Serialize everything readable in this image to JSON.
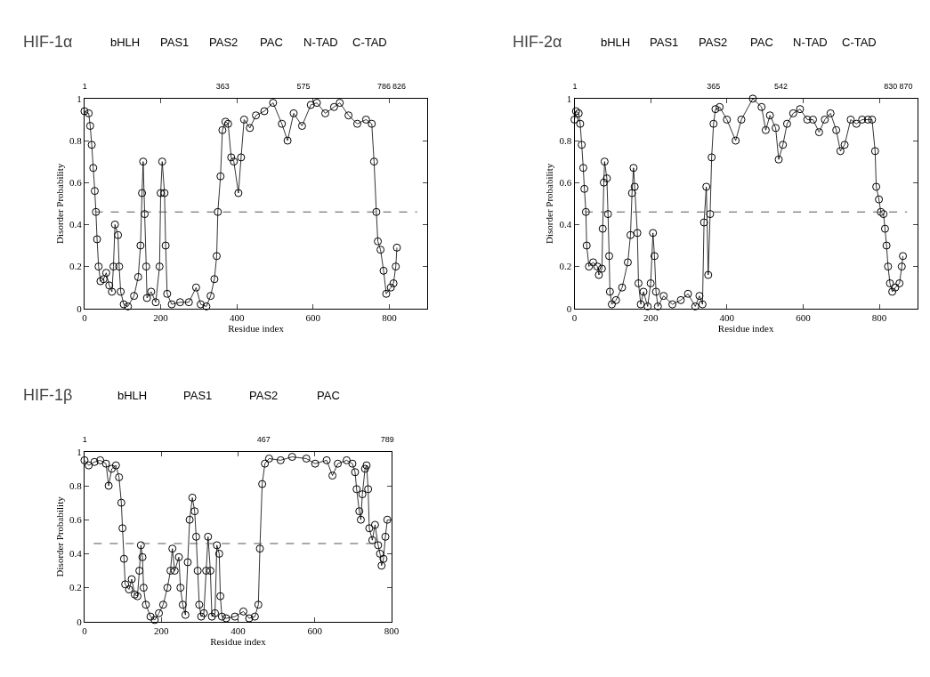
{
  "chart_data": [
    {
      "type": "line",
      "title": "HIF-1α",
      "xlabel": "Residue index",
      "ylabel": "Disorder Probability",
      "marker": "circle",
      "line_style": "solid",
      "xlim": [
        0,
        900
      ],
      "ylim": [
        0,
        1
      ],
      "xticks": [
        0,
        200,
        400,
        600,
        800
      ],
      "yticks": [
        0,
        0.2,
        0.4,
        0.6,
        0.8,
        1
      ],
      "x2lim": [
        0,
        900
      ],
      "x2ticks": [
        1,
        363,
        575,
        786,
        826
      ],
      "annotations": [
        "bHLH",
        "PAS1",
        "PAS2",
        "PAC",
        "N-TAD",
        "C-TAD"
      ],
      "ref_lines": [
        {
          "axis": "y",
          "value": 0.46,
          "line_style": "dashed",
          "color": "#555555"
        }
      ],
      "x": [
        0,
        11,
        15,
        19,
        23,
        27,
        30,
        33,
        37,
        42,
        50,
        57,
        65,
        72,
        76,
        80,
        88,
        91,
        95,
        103,
        114,
        130,
        141,
        147,
        151,
        154,
        158,
        162,
        164,
        175,
        187,
        197,
        200,
        204,
        210,
        213,
        217,
        229,
        251,
        274,
        293,
        305,
        320,
        331,
        341,
        347,
        350,
        357,
        362,
        370,
        377,
        385,
        392,
        404,
        411,
        419,
        434,
        450,
        472,
        495,
        518,
        533,
        549,
        571,
        594,
        610,
        632,
        655,
        670,
        693,
        716,
        739,
        754,
        760,
        766,
        770,
        777,
        785,
        792,
        804,
        811,
        817,
        820
      ],
      "series": [
        {
          "color": "#000000",
          "values": [
            0.94,
            0.93,
            0.87,
            0.78,
            0.67,
            0.56,
            0.46,
            0.33,
            0.2,
            0.13,
            0.14,
            0.17,
            0.11,
            0.08,
            0.2,
            0.4,
            0.35,
            0.2,
            0.08,
            0.02,
            0.01,
            0.06,
            0.15,
            0.3,
            0.55,
            0.7,
            0.45,
            0.2,
            0.05,
            0.08,
            0.03,
            0.2,
            0.55,
            0.7,
            0.55,
            0.3,
            0.07,
            0.02,
            0.03,
            0.03,
            0.1,
            0.02,
            0.01,
            0.06,
            0.14,
            0.25,
            0.46,
            0.63,
            0.85,
            0.89,
            0.88,
            0.72,
            0.7,
            0.55,
            0.72,
            0.9,
            0.86,
            0.92,
            0.94,
            0.98,
            0.88,
            0.8,
            0.93,
            0.87,
            0.97,
            0.98,
            0.93,
            0.96,
            0.98,
            0.92,
            0.88,
            0.9,
            0.88,
            0.7,
            0.46,
            0.32,
            0.28,
            0.18,
            0.07,
            0.1,
            0.12,
            0.2,
            0.29
          ]
        }
      ]
    },
    {
      "type": "line",
      "title": "HIF-2α",
      "xlabel": "Residue index",
      "ylabel": "Disorder Probability",
      "marker": "circle",
      "line_style": "solid",
      "xlim": [
        0,
        900
      ],
      "ylim": [
        0,
        1
      ],
      "xticks": [
        0,
        200,
        400,
        600,
        800
      ],
      "yticks": [
        0,
        0.2,
        0.4,
        0.6,
        0.8,
        1
      ],
      "x2lim": [
        0,
        900
      ],
      "x2ticks": [
        1,
        365,
        542,
        830,
        870
      ],
      "annotations": [
        "bHLH",
        "PAS1",
        "PAS2",
        "PAC",
        "N-TAD",
        "C-TAD"
      ],
      "ref_lines": [
        {
          "axis": "y",
          "value": 0.46,
          "line_style": "dashed",
          "color": "#555555"
        }
      ],
      "x": [
        0,
        4,
        11,
        15,
        19,
        23,
        26,
        30,
        32,
        38,
        49,
        60,
        64,
        72,
        74,
        77,
        79,
        85,
        88,
        91,
        93,
        98,
        109,
        125,
        140,
        147,
        151,
        155,
        158,
        165,
        168,
        174,
        181,
        192,
        200,
        206,
        210,
        214,
        219,
        234,
        257,
        279,
        298,
        317,
        328,
        336,
        340,
        346,
        351,
        356,
        360,
        365,
        370,
        381,
        400,
        423,
        438,
        468,
        491,
        502,
        513,
        528,
        536,
        547,
        558,
        574,
        592,
        611,
        626,
        642,
        657,
        672,
        687,
        698,
        709,
        725,
        740,
        755,
        770,
        781,
        789,
        792,
        799,
        804,
        811,
        815,
        819,
        823,
        828,
        834,
        842,
        853,
        859,
        862
      ],
      "series": [
        {
          "color": "#000000",
          "values": [
            0.9,
            0.94,
            0.93,
            0.88,
            0.78,
            0.67,
            0.57,
            0.46,
            0.3,
            0.2,
            0.22,
            0.2,
            0.16,
            0.19,
            0.38,
            0.6,
            0.7,
            0.62,
            0.45,
            0.25,
            0.08,
            0.02,
            0.04,
            0.1,
            0.22,
            0.35,
            0.55,
            0.67,
            0.58,
            0.36,
            0.12,
            0.02,
            0.08,
            0.01,
            0.12,
            0.36,
            0.25,
            0.08,
            0.01,
            0.06,
            0.02,
            0.04,
            0.07,
            0.01,
            0.06,
            0.02,
            0.41,
            0.58,
            0.16,
            0.45,
            0.72,
            0.88,
            0.95,
            0.96,
            0.9,
            0.8,
            0.9,
            1.0,
            0.96,
            0.85,
            0.92,
            0.86,
            0.71,
            0.78,
            0.88,
            0.93,
            0.95,
            0.9,
            0.9,
            0.84,
            0.9,
            0.93,
            0.85,
            0.75,
            0.78,
            0.9,
            0.88,
            0.9,
            0.9,
            0.9,
            0.75,
            0.58,
            0.52,
            0.46,
            0.45,
            0.38,
            0.3,
            0.2,
            0.12,
            0.08,
            0.1,
            0.12,
            0.2,
            0.25
          ]
        }
      ]
    },
    {
      "type": "line",
      "title": "HIF-1β",
      "xlabel": "Residue index",
      "ylabel": "Disorder Probability",
      "marker": "circle",
      "line_style": "solid",
      "xlim": [
        0,
        800
      ],
      "ylim": [
        0,
        1
      ],
      "xticks": [
        0,
        200,
        400,
        600,
        800
      ],
      "yticks": [
        0,
        0.2,
        0.4,
        0.6,
        0.8,
        1
      ],
      "x2lim": [
        0,
        800
      ],
      "x2ticks": [
        1,
        467,
        789
      ],
      "annotations": [
        "bHLH",
        "PAS1",
        "PAS2",
        "PAC"
      ],
      "ref_lines": [
        {
          "axis": "y",
          "value": 0.46,
          "line_style": "dashed",
          "color": "#555555"
        }
      ],
      "x": [
        0,
        11,
        26,
        41,
        56,
        63,
        71,
        82,
        90,
        96,
        99,
        103,
        106,
        116,
        123,
        131,
        138,
        143,
        147,
        151,
        154,
        160,
        172,
        183,
        194,
        205,
        216,
        224,
        229,
        235,
        246,
        250,
        256,
        263,
        269,
        274,
        281,
        287,
        291,
        295,
        299,
        304,
        311,
        317,
        322,
        328,
        332,
        340,
        345,
        351,
        354,
        358,
        369,
        392,
        414,
        429,
        444,
        453,
        457,
        463,
        470,
        481,
        511,
        541,
        578,
        601,
        631,
        646,
        660,
        683,
        698,
        705,
        709,
        716,
        720,
        724,
        731,
        735,
        739,
        742,
        750,
        757,
        765,
        770,
        774,
        779,
        784,
        789
      ],
      "series": [
        {
          "color": "#000000",
          "values": [
            0.95,
            0.92,
            0.94,
            0.95,
            0.93,
            0.8,
            0.9,
            0.92,
            0.85,
            0.7,
            0.55,
            0.37,
            0.22,
            0.19,
            0.25,
            0.16,
            0.15,
            0.3,
            0.45,
            0.38,
            0.2,
            0.1,
            0.03,
            0.01,
            0.05,
            0.1,
            0.2,
            0.3,
            0.43,
            0.3,
            0.38,
            0.2,
            0.1,
            0.04,
            0.35,
            0.6,
            0.73,
            0.65,
            0.5,
            0.3,
            0.1,
            0.03,
            0.05,
            0.3,
            0.5,
            0.3,
            0.03,
            0.05,
            0.45,
            0.4,
            0.15,
            0.03,
            0.02,
            0.03,
            0.06,
            0.02,
            0.03,
            0.1,
            0.43,
            0.81,
            0.93,
            0.96,
            0.95,
            0.97,
            0.96,
            0.93,
            0.95,
            0.86,
            0.93,
            0.95,
            0.93,
            0.88,
            0.78,
            0.65,
            0.6,
            0.75,
            0.9,
            0.92,
            0.78,
            0.55,
            0.48,
            0.57,
            0.45,
            0.4,
            0.33,
            0.37,
            0.5,
            0.6
          ]
        }
      ]
    }
  ]
}
